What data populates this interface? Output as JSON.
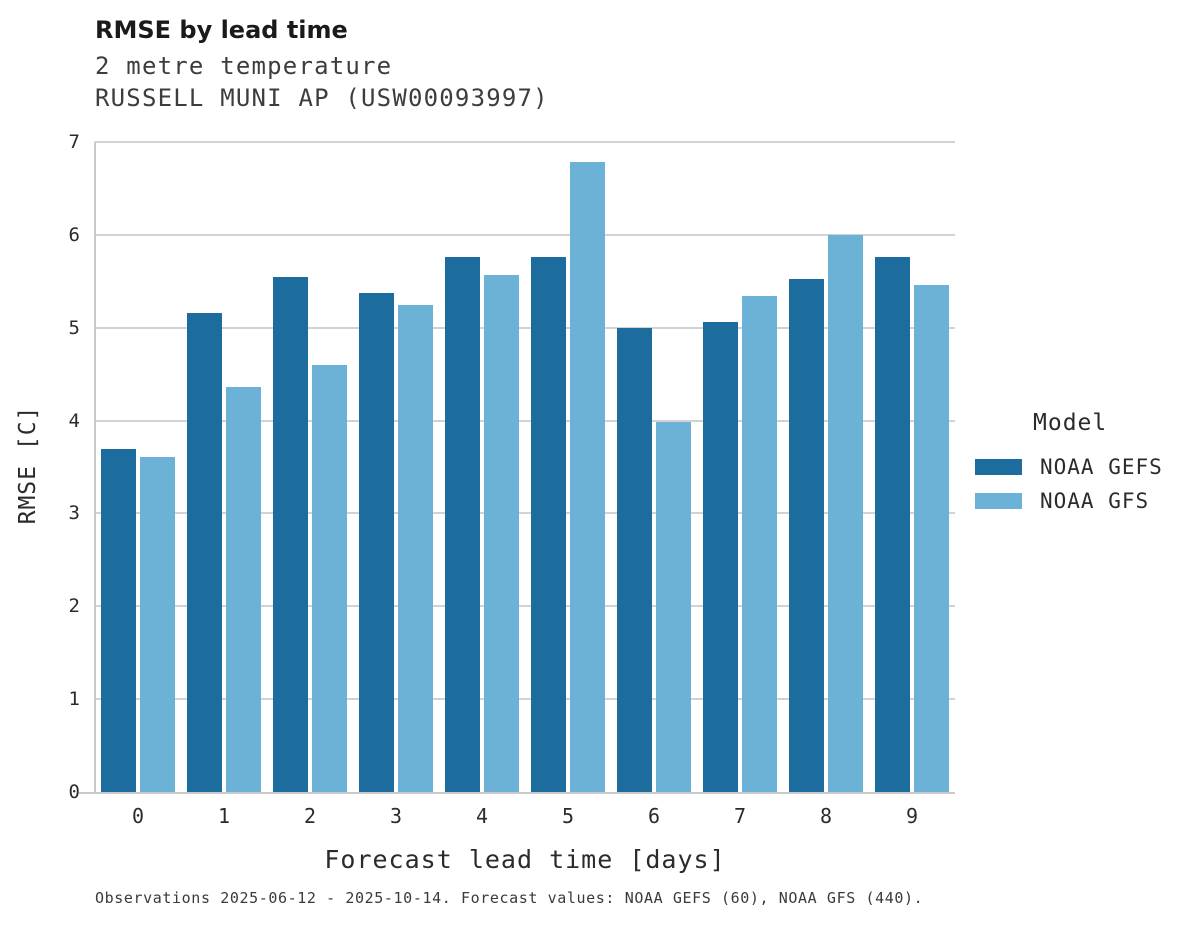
{
  "header": {
    "title": "RMSE by lead time",
    "subtitle1": "2 metre temperature",
    "subtitle2": "RUSSELL MUNI AP (USW00093997)"
  },
  "axes": {
    "y_label": "RMSE [C]",
    "x_label": "Forecast lead time [days]",
    "y_ticks": [
      "0",
      "1",
      "2",
      "3",
      "4",
      "5",
      "6",
      "7"
    ]
  },
  "legend": {
    "title": "Model",
    "items": [
      "NOAA GEFS",
      "NOAA GFS"
    ]
  },
  "footer": {
    "text": "Observations 2025-06-12 - 2025-10-14. Forecast values: NOAA GEFS (60), NOAA GFS (440)."
  },
  "colors": {
    "gefs_dark_blue": "#1c6d9e",
    "gfs_light_blue": "#6cb1d6",
    "gridline_gray": "#d2d2d2",
    "spine_gray": "#c9c9c9",
    "text_dark": "#262626"
  },
  "chart_data": {
    "type": "bar",
    "categories": [
      "0",
      "1",
      "2",
      "3",
      "4",
      "5",
      "6",
      "7",
      "8",
      "9"
    ],
    "series": [
      {
        "name": "NOAA GEFS",
        "color": "#1c6d9e",
        "values": [
          3.69,
          5.16,
          5.55,
          5.37,
          5.76,
          5.76,
          5.0,
          5.06,
          5.52,
          5.76
        ]
      },
      {
        "name": "NOAA GFS",
        "color": "#6cb1d6",
        "values": [
          3.61,
          4.36,
          4.6,
          5.24,
          5.57,
          6.79,
          3.98,
          5.34,
          6.0,
          5.46
        ]
      }
    ],
    "title": "RMSE by lead time",
    "subtitle": "2 metre temperature — RUSSELL MUNI AP (USW00093997)",
    "xlabel": "Forecast lead time [days]",
    "ylabel": "RMSE [C]",
    "ylim": [
      0,
      7
    ],
    "grid": true,
    "legend_title": "Model",
    "legend_position": "center-right"
  }
}
